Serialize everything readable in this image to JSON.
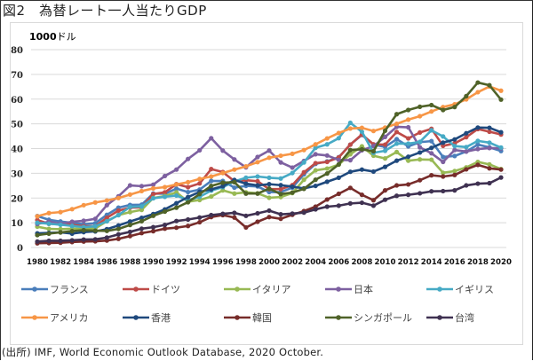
{
  "title": "図2　為替レート一人当たりGDP",
  "source": "(出所) IMF, World Economic Outlook Database, 2020 October.",
  "chart_data": {
    "type": "line",
    "title": "為替レート一人当たりGDP",
    "unit_label_bold": "1000",
    "unit_label": "ドル",
    "xlabel": "",
    "ylabel": "1000ドル",
    "ylim": [
      0,
      80
    ],
    "yticks": [
      0,
      10,
      20,
      30,
      40,
      50,
      60,
      70,
      80
    ],
    "grid": true,
    "legend_position": "bottom",
    "x": [
      1980,
      1981,
      1982,
      1983,
      1984,
      1985,
      1986,
      1987,
      1988,
      1989,
      1990,
      1991,
      1992,
      1993,
      1994,
      1995,
      1996,
      1997,
      1998,
      1999,
      2000,
      2001,
      2002,
      2003,
      2004,
      2005,
      2006,
      2007,
      2008,
      2009,
      2010,
      2011,
      2012,
      2013,
      2014,
      2015,
      2016,
      2017,
      2018,
      2019,
      2020
    ],
    "xtick_labels": [
      "1980",
      "1982",
      "1984",
      "1986",
      "1988",
      "1990",
      "1992",
      "1994",
      "1996",
      "1998",
      "2000",
      "2002",
      "2004",
      "2006",
      "2008",
      "2010",
      "2012",
      "2014",
      "2016",
      "2018",
      "2020"
    ],
    "series": [
      {
        "name": "フランス",
        "color": "#4a7ebb",
        "values": [
          12.7,
          11.2,
          10.5,
          10.0,
          9.4,
          9.8,
          13.2,
          16.1,
          17.2,
          17.3,
          21.8,
          21.7,
          23.8,
          22.4,
          23.4,
          26.9,
          26.9,
          24.2,
          24.9,
          24.7,
          22.4,
          22.4,
          24.2,
          29.6,
          33.8,
          34.8,
          36.5,
          41.6,
          45.5,
          41.6,
          40.7,
          43.8,
          40.9,
          42.6,
          43.0,
          36.6,
          37.0,
          38.8,
          41.6,
          40.5,
          39.0
        ]
      },
      {
        "name": "ドイツ",
        "color": "#be4b48",
        "values": [
          11.1,
          9.6,
          9.3,
          9.2,
          8.6,
          8.6,
          12.0,
          14.9,
          16.1,
          16.2,
          21.6,
          22.3,
          25.6,
          24.4,
          25.9,
          31.7,
          30.5,
          26.8,
          27.2,
          26.8,
          23.6,
          23.6,
          25.2,
          30.4,
          34.1,
          34.6,
          36.4,
          41.6,
          45.7,
          41.7,
          41.6,
          46.7,
          44.1,
          46.5,
          48.0,
          41.1,
          42.1,
          44.6,
          47.9,
          46.8,
          45.7
        ]
      },
      {
        "name": "イタリア",
        "color": "#98b954",
        "values": [
          8.4,
          7.5,
          7.4,
          7.6,
          7.5,
          7.7,
          10.6,
          13.1,
          14.3,
          15.2,
          20.0,
          20.8,
          22.3,
          18.5,
          19.2,
          20.6,
          23.1,
          21.8,
          22.3,
          21.9,
          20.1,
          20.4,
          22.0,
          27.4,
          31.2,
          31.9,
          33.5,
          37.7,
          40.9,
          37.1,
          36.0,
          38.6,
          35.1,
          35.6,
          35.5,
          30.2,
          30.9,
          32.4,
          34.6,
          33.6,
          31.7
        ]
      },
      {
        "name": "日本",
        "color": "#7d60a0",
        "values": [
          9.5,
          10.4,
          9.6,
          10.4,
          10.8,
          11.6,
          17.1,
          20.7,
          25.1,
          24.8,
          25.4,
          28.9,
          31.5,
          35.8,
          39.3,
          44.2,
          39.2,
          35.6,
          32.4,
          36.6,
          39.2,
          34.4,
          32.3,
          35.0,
          37.7,
          37.2,
          35.4,
          35.3,
          39.3,
          41.0,
          44.7,
          48.8,
          48.6,
          40.5,
          38.1,
          34.6,
          39.4,
          38.8,
          39.8,
          40.2,
          40.1
        ]
      },
      {
        "name": "イギリス",
        "color": "#46aac5",
        "values": [
          10.0,
          9.6,
          9.2,
          8.7,
          8.2,
          8.6,
          10.6,
          13.1,
          16.4,
          16.6,
          19.9,
          20.5,
          21.0,
          19.1,
          20.5,
          23.0,
          24.4,
          26.7,
          28.2,
          28.7,
          28.2,
          27.9,
          30.1,
          34.4,
          40.3,
          41.7,
          44.2,
          50.4,
          46.8,
          38.3,
          39.1,
          42.0,
          42.0,
          42.7,
          47.4,
          44.9,
          41.0,
          40.6,
          43.1,
          42.4,
          40.4
        ]
      },
      {
        "name": "アメリカ",
        "color": "#f79646",
        "values": [
          12.6,
          13.9,
          14.3,
          15.5,
          17.1,
          18.2,
          19.0,
          20.0,
          21.4,
          22.8,
          23.9,
          24.4,
          25.5,
          26.4,
          27.7,
          28.7,
          30.1,
          31.5,
          32.8,
          34.5,
          36.3,
          37.1,
          37.9,
          39.4,
          41.7,
          44.1,
          46.3,
          48.1,
          48.4,
          47.1,
          48.5,
          50.0,
          51.7,
          53.1,
          55.0,
          56.8,
          57.9,
          59.9,
          62.8,
          65.1,
          63.4
        ]
      },
      {
        "name": "香港",
        "color": "#1f497d",
        "values": [
          5.7,
          5.9,
          6.1,
          5.6,
          6.2,
          6.5,
          7.4,
          8.9,
          10.5,
          12.0,
          13.5,
          15.4,
          17.9,
          20.4,
          22.5,
          23.5,
          24.8,
          27.3,
          25.8,
          25.1,
          25.6,
          25.2,
          24.6,
          23.9,
          24.9,
          26.6,
          28.2,
          30.6,
          31.5,
          30.7,
          32.6,
          35.1,
          36.7,
          38.4,
          40.3,
          42.4,
          43.7,
          46.2,
          48.5,
          48.4,
          46.6
        ]
      },
      {
        "name": "韓国",
        "color": "#772c2a",
        "values": [
          1.7,
          1.8,
          1.9,
          2.2,
          2.4,
          2.5,
          2.8,
          3.5,
          4.6,
          5.8,
          6.6,
          7.6,
          8.0,
          8.7,
          10.2,
          12.3,
          13.1,
          12.1,
          8.1,
          10.4,
          12.3,
          11.6,
          13.2,
          14.7,
          16.5,
          19.4,
          21.7,
          24.1,
          21.3,
          19.1,
          23.1,
          25.1,
          25.5,
          27.2,
          29.2,
          28.7,
          29.3,
          31.6,
          33.4,
          32.0,
          31.5
        ]
      },
      {
        "name": "シンガポール",
        "color": "#4f6228",
        "values": [
          5.0,
          5.6,
          6.1,
          6.6,
          7.0,
          6.8,
          6.7,
          7.5,
          9.1,
          10.6,
          12.8,
          14.5,
          16.1,
          18.3,
          21.6,
          24.9,
          26.2,
          26.4,
          21.8,
          21.8,
          23.8,
          21.6,
          22.2,
          23.7,
          27.4,
          29.9,
          33.6,
          39.4,
          39.7,
          38.9,
          47.2,
          53.9,
          55.6,
          56.9,
          57.6,
          55.6,
          56.8,
          61.2,
          66.7,
          65.6,
          59.8
        ]
      },
      {
        "name": "台湾",
        "color": "#3f3151",
        "values": [
          2.4,
          2.7,
          2.7,
          2.9,
          3.2,
          3.3,
          4.0,
          5.3,
          6.3,
          7.6,
          8.2,
          9.1,
          10.7,
          11.3,
          12.1,
          13.1,
          13.6,
          14.0,
          12.8,
          13.8,
          14.9,
          13.4,
          13.7,
          14.1,
          15.4,
          16.5,
          16.9,
          17.8,
          18.1,
          16.9,
          19.3,
          20.9,
          21.3,
          21.9,
          22.7,
          22.8,
          23.1,
          25.1,
          25.8,
          26.0,
          28.3
        ]
      }
    ]
  }
}
